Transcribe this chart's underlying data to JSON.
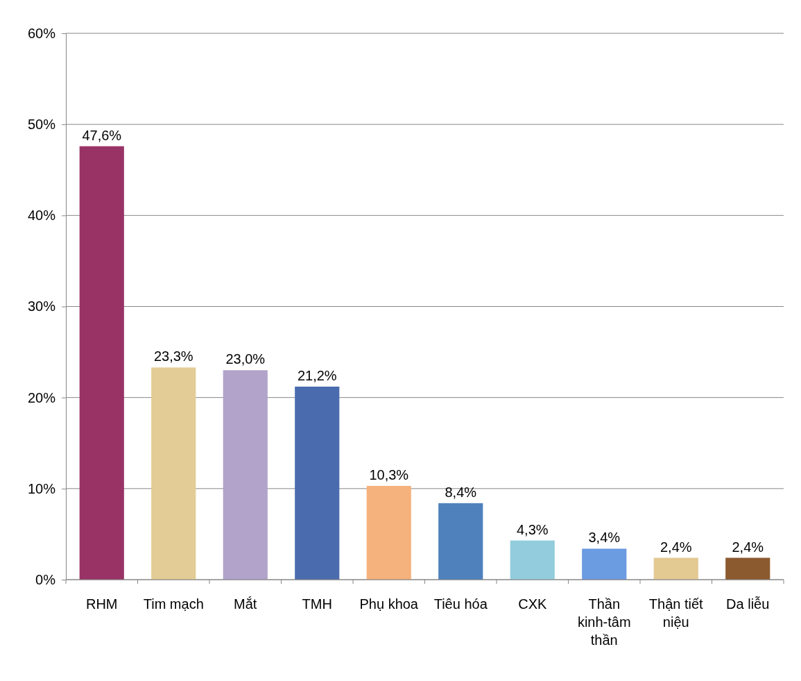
{
  "chart_data": {
    "type": "bar",
    "categories": [
      "RHM",
      "Tim mạch",
      "Mắt",
      "TMH",
      "Phụ khoa",
      "Tiêu hóa",
      "CXK",
      "Thần kinh-tâm thần",
      "Thận tiết niệu",
      "Da liễu"
    ],
    "values": [
      47.6,
      23.3,
      23.0,
      21.2,
      10.3,
      8.4,
      4.3,
      3.4,
      2.4,
      2.4
    ],
    "value_labels": [
      "47,6%",
      "23,3%",
      "23,0%",
      "21,2%",
      "10,3%",
      "8,4%",
      "4,3%",
      "3,4%",
      "2,4%",
      "2,4%"
    ],
    "colors": [
      "#993366",
      "#e3cc96",
      "#b1a3c9",
      "#4a6cae",
      "#f6b27c",
      "#4f81bd",
      "#93cddd",
      "#6b9be0",
      "#e3c992",
      "#8b5a2e"
    ],
    "ylim": [
      0,
      60
    ],
    "yticks": [
      {
        "value": 0,
        "label": "0%"
      },
      {
        "value": 10,
        "label": "10%"
      },
      {
        "value": 20,
        "label": "20%"
      },
      {
        "value": 30,
        "label": "30%"
      },
      {
        "value": 40,
        "label": "40%"
      },
      {
        "value": 50,
        "label": "50%"
      },
      {
        "value": 60,
        "label": "60%"
      }
    ],
    "grid": "y"
  }
}
